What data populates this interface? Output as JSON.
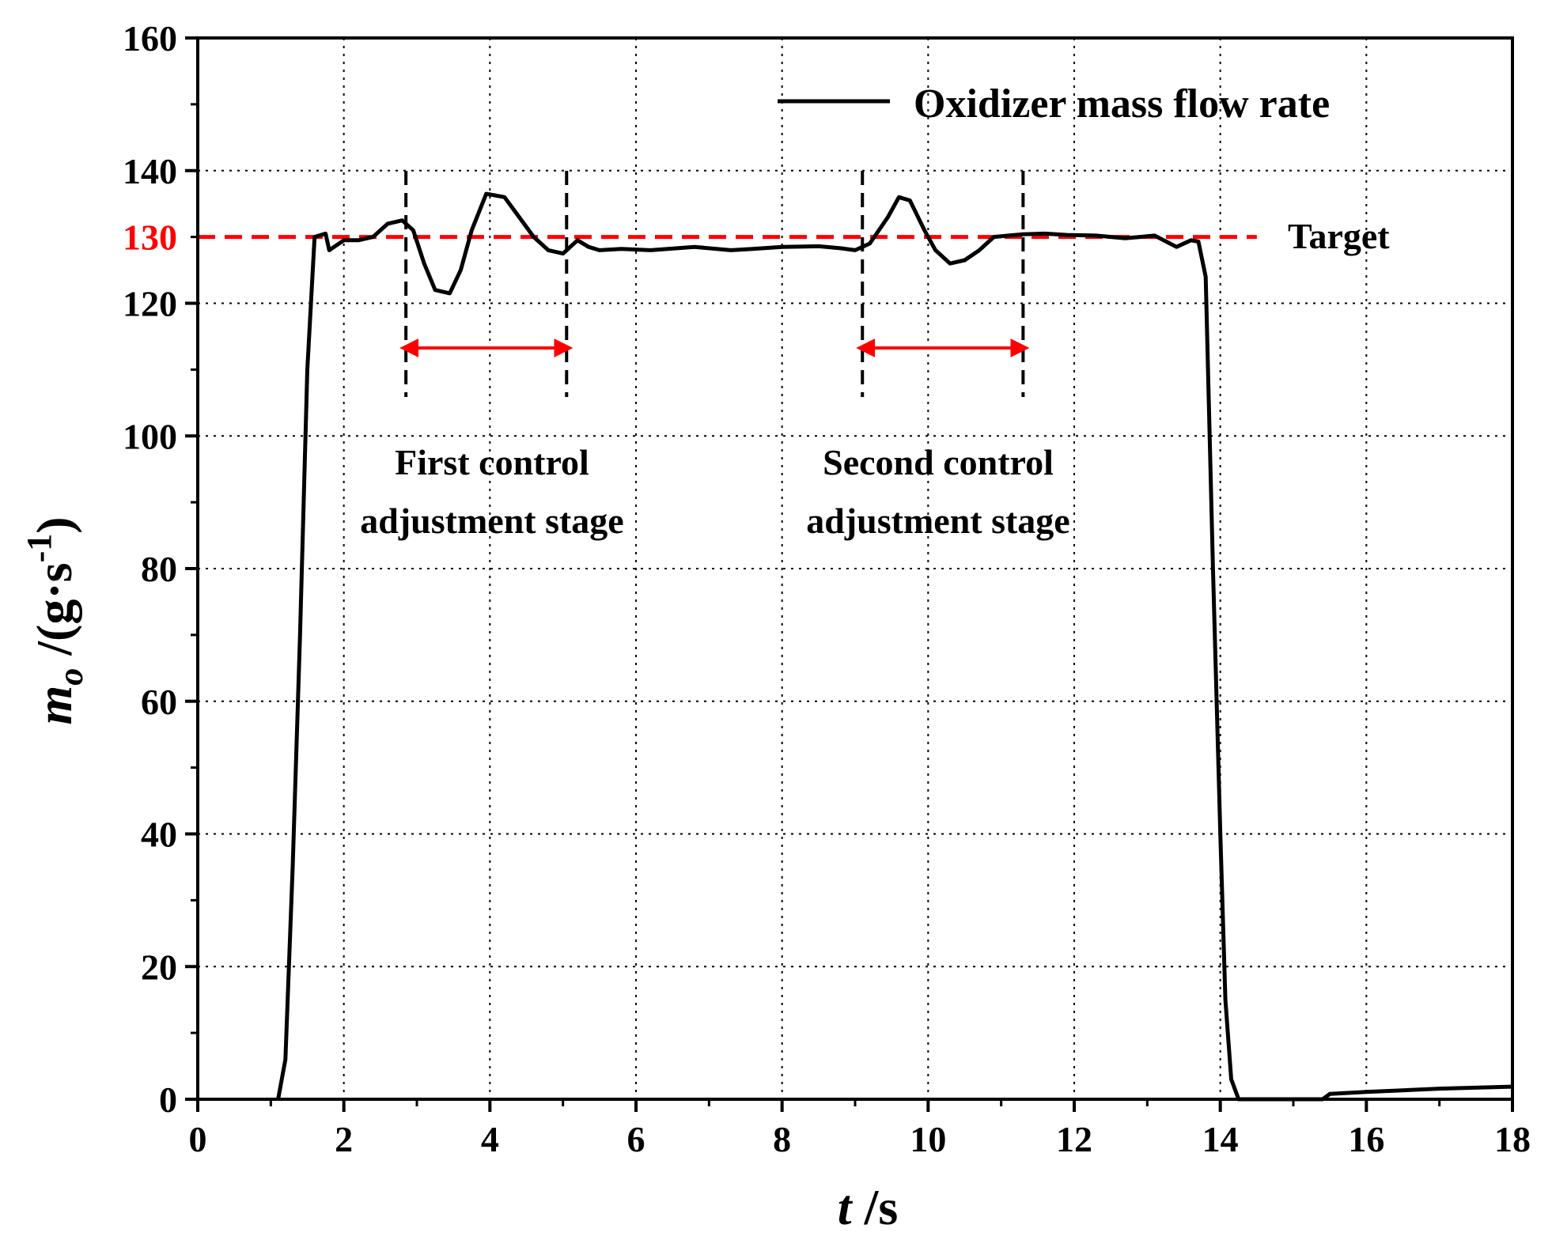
{
  "chart_data": {
    "type": "line",
    "title": "",
    "xlabel_italic": "t",
    "xlabel_unit": " /s",
    "ylabel_italic_main": "m",
    "ylabel_italic_sub": "o",
    "ylabel_unit_prefix": " /(g·s",
    "ylabel_unit_sup": "-1",
    "ylabel_unit_suffix": ")",
    "xlim": [
      0,
      18
    ],
    "ylim": [
      0,
      160
    ],
    "x_ticks": [
      0,
      2,
      4,
      6,
      8,
      10,
      12,
      14,
      16,
      18
    ],
    "y_ticks": [
      0,
      20,
      40,
      60,
      80,
      100,
      120,
      140,
      160
    ],
    "x_tick_labels": [
      "0",
      "2",
      "4",
      "6",
      "8",
      "10",
      "12",
      "14",
      "16",
      "18"
    ],
    "y_tick_labels": [
      "0",
      "20",
      "40",
      "60",
      "80",
      "100",
      "120",
      "140",
      "160"
    ],
    "grid": "dotted",
    "legend_position": "top-right",
    "series": [
      {
        "name": "Oxidizer mass flow rate",
        "color": "#000000",
        "x": [
          1.1,
          1.2,
          1.3,
          1.4,
          1.5,
          1.6,
          1.75,
          1.8,
          2.0,
          2.2,
          2.4,
          2.6,
          2.8,
          2.95,
          3.1,
          3.25,
          3.45,
          3.6,
          3.75,
          3.95,
          4.2,
          4.4,
          4.6,
          4.8,
          5.0,
          5.2,
          5.35,
          5.5,
          5.8,
          6.2,
          6.8,
          7.3,
          7.6,
          8.0,
          8.5,
          8.8,
          9.0,
          9.2,
          9.45,
          9.6,
          9.75,
          9.95,
          10.1,
          10.3,
          10.5,
          10.7,
          10.9,
          11.1,
          11.3,
          11.6,
          11.9,
          12.3,
          12.7,
          12.9,
          13.1,
          13.4,
          13.6,
          13.7,
          13.8,
          13.9,
          14.0,
          14.07,
          14.15,
          14.25,
          14.4,
          15.4,
          15.5,
          16.0,
          17.0,
          18.0
        ],
        "values": [
          0,
          6,
          35,
          70,
          110,
          130,
          130.5,
          128,
          129.5,
          129.5,
          130,
          132,
          132.5,
          131,
          126,
          122,
          121.5,
          125,
          131,
          136.5,
          136,
          133,
          130,
          128,
          127.5,
          129.5,
          128.5,
          128,
          128.2,
          128,
          128.5,
          128,
          128.2,
          128.5,
          128.6,
          128.3,
          128,
          129,
          133,
          136,
          135.5,
          131,
          128,
          126,
          126.5,
          128,
          130,
          130.2,
          130.4,
          130.5,
          130.3,
          130.2,
          129.8,
          130,
          130.2,
          128.5,
          129.5,
          129.3,
          124,
          80,
          40,
          15,
          3,
          0,
          0,
          0,
          0.8,
          1.1,
          1.6,
          1.9
        ]
      }
    ],
    "reference_line": {
      "value": 130,
      "label": "Target",
      "color": "#ff0000",
      "value_label": "130"
    },
    "stages": [
      {
        "start": 2.85,
        "end": 5.05,
        "label_line1": "First control",
        "label_line2": "adjustment stage"
      },
      {
        "start": 9.1,
        "end": 11.3,
        "label_line1": "Second control",
        "label_line2": "adjustment stage"
      }
    ]
  }
}
